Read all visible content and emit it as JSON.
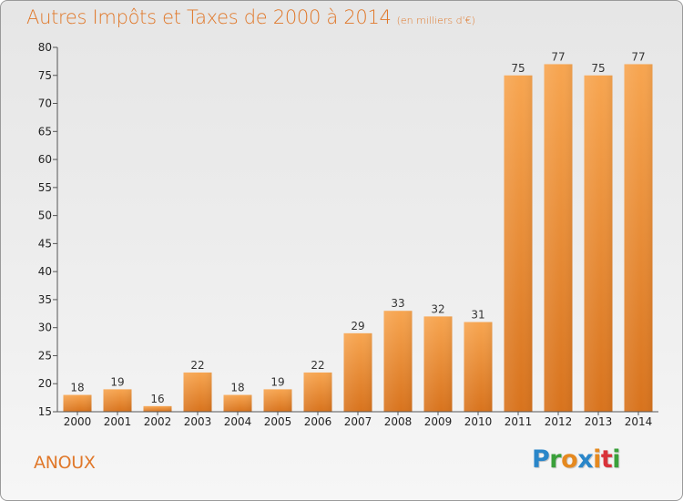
{
  "title": "Autres Impôts et Taxes de 2000 à 2014",
  "subtitle": "(en milliers d'€)",
  "commune": "ANOUX",
  "logo": {
    "letters": [
      "P",
      "r",
      "o",
      "x",
      "i",
      "t",
      "i"
    ],
    "colors": [
      "#2a86c9",
      "#3aa03a",
      "#e5891f",
      "#2a86c9",
      "#e5891f",
      "#d9333a",
      "#3aa03a"
    ]
  },
  "colors": {
    "bar_light": "#f7a550",
    "bar_dark": "#d8731d",
    "accent": "#e0782a"
  },
  "chart_data": {
    "type": "bar",
    "categories": [
      "2000",
      "2001",
      "2002",
      "2003",
      "2004",
      "2005",
      "2006",
      "2007",
      "2008",
      "2009",
      "2010",
      "2011",
      "2012",
      "2013",
      "2014"
    ],
    "values": [
      18,
      19,
      16,
      22,
      18,
      19,
      22,
      29,
      33,
      32,
      31,
      75,
      77,
      75,
      77
    ],
    "ylim": [
      15,
      80
    ],
    "yticks": [
      15,
      20,
      25,
      30,
      35,
      40,
      45,
      50,
      55,
      60,
      65,
      70,
      75,
      80
    ],
    "title": "Autres Impôts et Taxes de 2000 à 2014",
    "subtitle": "(en milliers d'€)",
    "xlabel": "",
    "ylabel": "",
    "grid": false,
    "data_labels": true
  }
}
